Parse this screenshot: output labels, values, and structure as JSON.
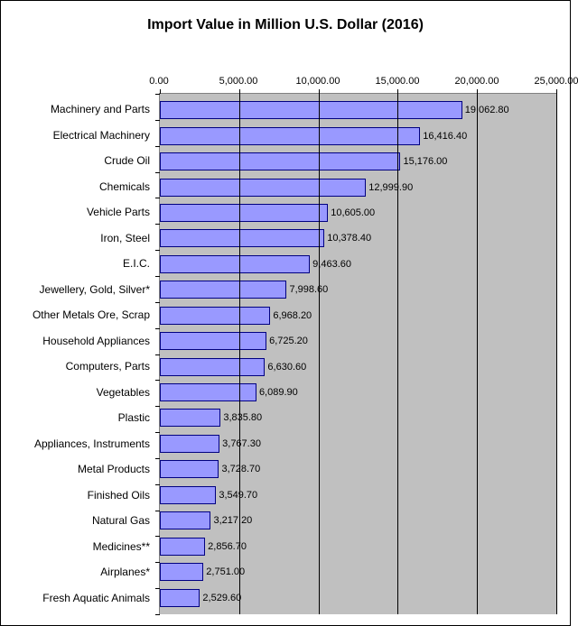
{
  "chart": {
    "type": "bar-horizontal",
    "title": "Import Value in Million U.S. Dollar (2016)",
    "title_fontsize": 16,
    "title_fontweight": "bold",
    "background_color": "#ffffff",
    "plot_background_color": "#c0c0c0",
    "border_color": "#000000",
    "gridline_color": "#000000",
    "bar_fill_color": "#9999ff",
    "bar_border_color": "#000080",
    "label_color": "#000000",
    "axis_fontsize": 11,
    "category_fontsize": 12,
    "xlim": [
      0,
      25000
    ],
    "xtick_step": 5000,
    "xticks": [
      "0.00",
      "5,000.00",
      "10,000.00",
      "15,000.00",
      "20,000.00",
      "25,000.00"
    ],
    "categories": [
      "Machinery and Parts",
      "Electrical Machinery",
      "Crude Oil",
      "Chemicals",
      "Vehicle Parts",
      "Iron, Steel",
      "E.I.C.",
      "Jewellery, Gold, Silver*",
      "Other Metals Ore, Scrap",
      "Household Appliances",
      "Computers, Parts",
      "Vegetables",
      "Plastic",
      "Appliances, Instruments",
      "Metal Products",
      "Finished Oils",
      "Natural Gas",
      "Medicines**",
      "Airplanes*",
      "Fresh Aquatic Animals"
    ],
    "values": [
      19062.8,
      16416.4,
      15176.0,
      12999.9,
      10605.0,
      10378.4,
      9463.6,
      7998.6,
      6968.2,
      6725.2,
      6630.6,
      6089.9,
      3835.8,
      3767.3,
      3728.7,
      3549.7,
      3217.2,
      2856.7,
      2751.0,
      2529.6
    ],
    "value_labels": [
      "19,062.80",
      "16,416.40",
      "15,176.00",
      "12,999.90",
      "10,605.00",
      "10,378.40",
      "9,463.60",
      "7,998.60",
      "6,968.20",
      "6,725.20",
      "6,630.60",
      "6,089.90",
      "3,835.80",
      "3,767.30",
      "3,728.70",
      "3,549.70",
      "3,217.20",
      "2,856.70",
      "2,751.00",
      "2,529.60"
    ]
  }
}
